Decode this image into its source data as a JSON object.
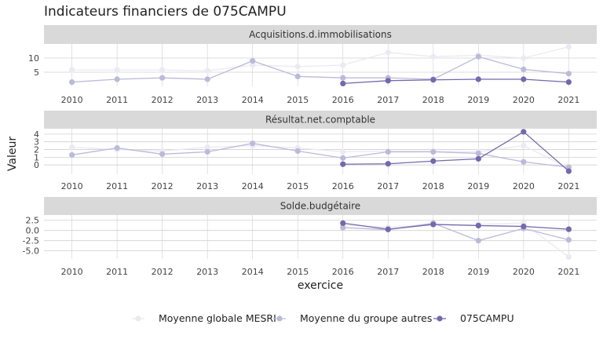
{
  "title": "Indicateurs financiers de 075CAMPU",
  "xlabel": "exercice",
  "ylabel": "Valeur",
  "colors": {
    "strip_bg": "#d9d9d9",
    "grid": "#d0d0d0",
    "series": [
      "#ebe9f2",
      "#bcbad9",
      "#7568ad"
    ]
  },
  "chart_data": [
    {
      "type": "line",
      "panel": "Acquisitions.d.immobilisations",
      "x": [
        2010,
        2011,
        2012,
        2013,
        2014,
        2015,
        2016,
        2017,
        2018,
        2019,
        2020,
        2021
      ],
      "yticks": [
        5,
        10
      ],
      "ylim": [
        0,
        15
      ],
      "series": [
        {
          "name": "Moyenne globale MESRI",
          "values": [
            5.8,
            5.8,
            5.8,
            5.5,
            7.5,
            7.0,
            7.5,
            12.0,
            10.5,
            11.0,
            10.0,
            14.0
          ]
        },
        {
          "name": "Moyenne du groupe autres",
          "values": [
            1.5,
            2.5,
            3.0,
            2.5,
            9.0,
            3.5,
            3.0,
            3.0,
            2.5,
            10.5,
            6.0,
            4.5
          ]
        },
        {
          "name": "075CAMPU",
          "values": [
            null,
            null,
            null,
            null,
            null,
            null,
            1.0,
            2.0,
            2.3,
            2.5,
            2.5,
            1.5
          ]
        }
      ]
    },
    {
      "type": "line",
      "panel": "Résultat.net.comptable",
      "x": [
        2010,
        2011,
        2012,
        2013,
        2014,
        2015,
        2016,
        2017,
        2018,
        2019,
        2020,
        2021
      ],
      "yticks": [
        0,
        1,
        2,
        3,
        4
      ],
      "ylim": [
        -1.2,
        4.7
      ],
      "series": [
        {
          "name": "Moyenne globale MESRI",
          "values": [
            2.3,
            2.0,
            1.8,
            2.3,
            2.5,
            2.2,
            1.7,
            1.8,
            1.8,
            1.7,
            2.5,
            -0.4
          ]
        },
        {
          "name": "Moyenne du groupe autres",
          "values": [
            1.3,
            2.2,
            1.4,
            1.7,
            2.8,
            1.8,
            0.9,
            1.7,
            1.7,
            1.5,
            0.4,
            -0.3
          ]
        },
        {
          "name": "075CAMPU",
          "values": [
            null,
            null,
            null,
            null,
            null,
            null,
            0.1,
            0.15,
            0.5,
            0.8,
            4.3,
            -0.8
          ]
        }
      ]
    },
    {
      "type": "line",
      "panel": "Solde.budgétaire",
      "x": [
        2010,
        2011,
        2012,
        2013,
        2014,
        2015,
        2016,
        2017,
        2018,
        2019,
        2020,
        2021
      ],
      "yticks": [
        -5.0,
        -2.5,
        0.0,
        2.5
      ],
      "ylim": [
        -7,
        3.8
      ],
      "series": [
        {
          "name": "Moyenne globale MESRI",
          "values": [
            null,
            null,
            null,
            null,
            null,
            null,
            1.3,
            0.8,
            1.4,
            1.5,
            1.8,
            -6.5
          ]
        },
        {
          "name": "Moyenne du groupe autres",
          "values": [
            null,
            null,
            null,
            null,
            null,
            null,
            0.7,
            0.2,
            1.8,
            -2.5,
            0.5,
            -2.3
          ]
        },
        {
          "name": "075CAMPU",
          "values": [
            null,
            null,
            null,
            null,
            null,
            null,
            1.8,
            0.3,
            1.5,
            1.2,
            1.0,
            0.3
          ]
        }
      ]
    }
  ]
}
